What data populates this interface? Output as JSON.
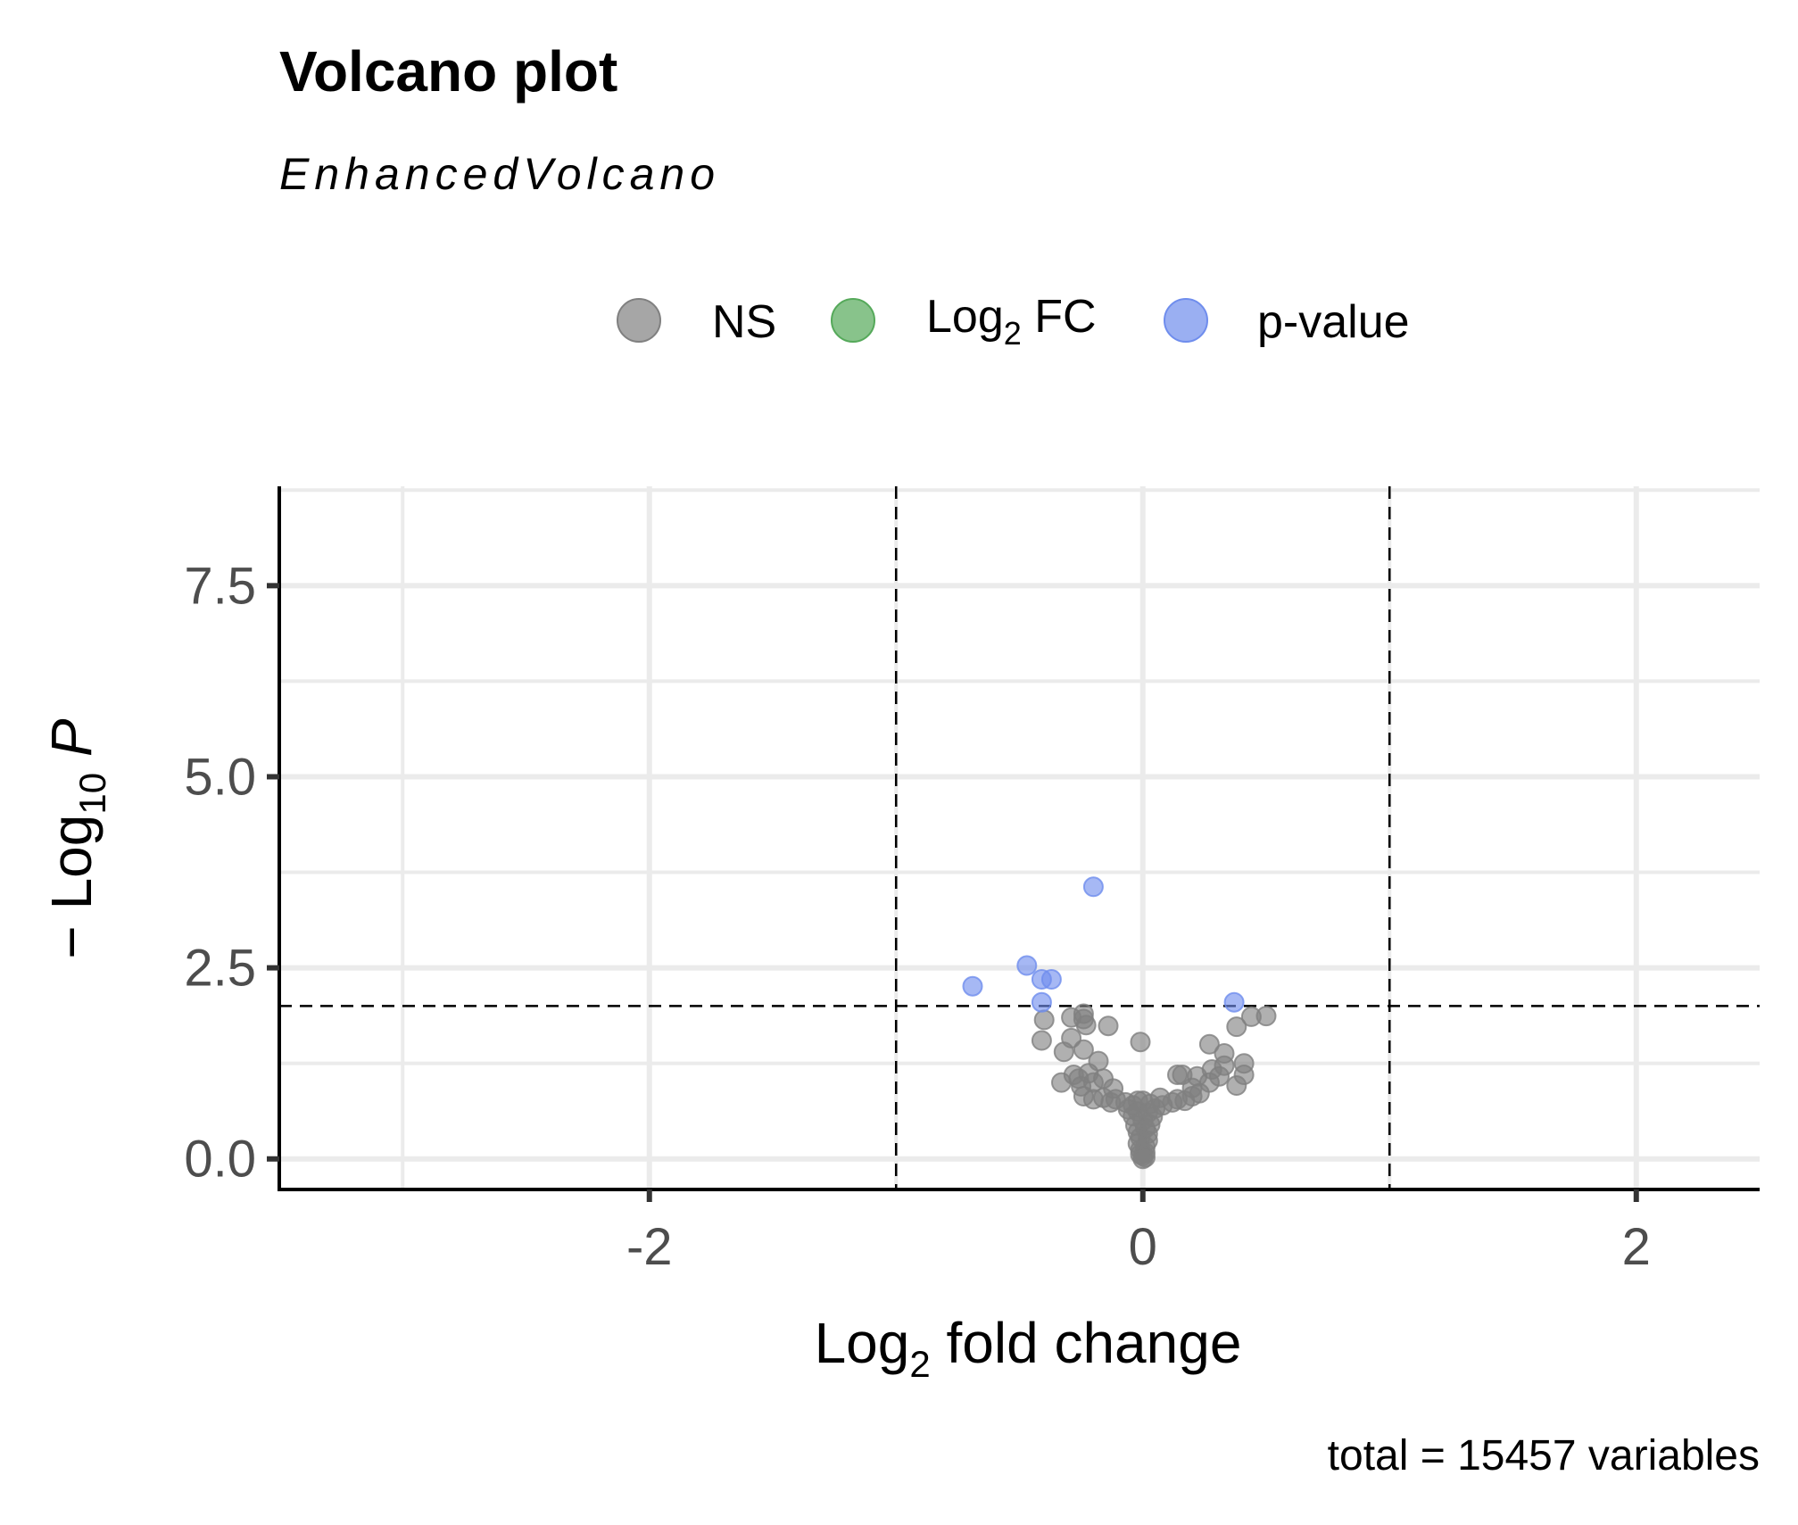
{
  "chart_data": {
    "type": "scatter",
    "title": "Volcano plot",
    "subtitle": "EnhancedVolcano",
    "xlabel": {
      "prefix": "Log",
      "sub": "2",
      "suffix": " fold change"
    },
    "ylabel": {
      "prefix": "− Log",
      "sub": "10",
      "suffix": " P"
    },
    "caption": "total = 15457 variables",
    "xlim": [
      -3.5,
      2.5
    ],
    "ylim": [
      -0.4,
      8.8
    ],
    "x_major_ticks": [
      -2,
      0,
      2
    ],
    "x_tick_labels": [
      "-2",
      "0",
      "2"
    ],
    "x_minor_ticks": [
      -3,
      -1,
      1
    ],
    "y_major_ticks": [
      0,
      2.5,
      5,
      7.5
    ],
    "y_tick_labels": [
      "0.0",
      "2.5",
      "5.0",
      "7.5"
    ],
    "y_minor_ticks": [
      1.25,
      3.75,
      6.25,
      8.75
    ],
    "grid": true,
    "legend_position": "top",
    "cutoffs": {
      "fc_x": [
        -1,
        1
      ],
      "p_y": 2
    },
    "legend": [
      {
        "name": "NS",
        "color": "#808080"
      },
      {
        "name": {
          "prefix": "Log",
          "sub": "2",
          "suffix": " FC"
        },
        "color": "#55a95a"
      },
      {
        "name": "p-value",
        "color": "#6f8ded"
      }
    ],
    "series": [
      {
        "name": "NS",
        "color": "#808080",
        "points": [
          [
            -0.4,
            1.82
          ],
          [
            -0.29,
            1.85
          ],
          [
            -0.24,
            1.83
          ],
          [
            -0.24,
            1.9
          ],
          [
            -0.23,
            1.75
          ],
          [
            -0.14,
            1.74
          ],
          [
            -0.41,
            1.55
          ],
          [
            -0.29,
            1.58
          ],
          [
            -0.24,
            1.43
          ],
          [
            -0.32,
            1.4
          ],
          [
            -0.18,
            1.28
          ],
          [
            -0.33,
            1.0
          ],
          [
            -0.26,
            1.05
          ],
          [
            -0.28,
            1.1
          ],
          [
            -0.22,
            1.12
          ],
          [
            -0.25,
            0.95
          ],
          [
            -0.2,
            1.0
          ],
          [
            -0.16,
            1.05
          ],
          [
            -0.12,
            0.92
          ],
          [
            -0.24,
            0.82
          ],
          [
            -0.2,
            0.78
          ],
          [
            -0.16,
            0.8
          ],
          [
            -0.11,
            0.78
          ],
          [
            -0.07,
            0.74
          ],
          [
            -0.13,
            0.74
          ],
          [
            -0.01,
            1.53
          ],
          [
            0.27,
            1.5
          ],
          [
            0.33,
            1.38
          ],
          [
            0.38,
            1.73
          ],
          [
            0.44,
            1.86
          ],
          [
            0.5,
            1.87
          ],
          [
            0.33,
            1.22
          ],
          [
            0.28,
            1.17
          ],
          [
            0.41,
            1.25
          ],
          [
            0.41,
            1.1
          ],
          [
            0.38,
            0.96
          ],
          [
            0.31,
            1.08
          ],
          [
            0.27,
            1.0
          ],
          [
            0.22,
            1.08
          ],
          [
            0.16,
            1.1
          ],
          [
            0.14,
            1.1
          ],
          [
            0.2,
            0.93
          ],
          [
            0.23,
            0.86
          ],
          [
            0.2,
            0.82
          ],
          [
            0.17,
            0.76
          ],
          [
            0.14,
            0.78
          ],
          [
            0.07,
            0.8
          ],
          [
            0.12,
            0.74
          ],
          [
            0.08,
            0.7
          ],
          [
            -0.02,
            0.76
          ],
          [
            0.0,
            0.76
          ],
          [
            0.03,
            0.72
          ],
          [
            -0.04,
            0.7
          ],
          [
            -0.06,
            0.65
          ],
          [
            0.05,
            0.66
          ],
          [
            -0.02,
            0.62
          ],
          [
            0.02,
            0.6
          ],
          [
            0.04,
            0.55
          ],
          [
            -0.04,
            0.56
          ],
          [
            0.0,
            0.5
          ],
          [
            0.03,
            0.45
          ],
          [
            -0.03,
            0.44
          ],
          [
            0.01,
            0.4
          ],
          [
            -0.02,
            0.35
          ],
          [
            0.02,
            0.33
          ],
          [
            -0.01,
            0.28
          ],
          [
            0.02,
            0.24
          ],
          [
            -0.02,
            0.2
          ],
          [
            0.01,
            0.16
          ],
          [
            -0.01,
            0.12
          ],
          [
            0.01,
            0.08
          ],
          [
            0.0,
            0.04
          ],
          [
            0.0,
            0.0
          ],
          [
            -0.01,
            0.06
          ],
          [
            0.01,
            0.02
          ]
        ]
      },
      {
        "name": "p-value",
        "color": "#6f8ded",
        "points": [
          [
            -0.2,
            3.56
          ],
          [
            -0.47,
            2.53
          ],
          [
            -0.41,
            2.35
          ],
          [
            -0.37,
            2.35
          ],
          [
            -0.69,
            2.26
          ],
          [
            -0.41,
            2.05
          ],
          [
            0.37,
            2.05
          ]
        ]
      }
    ]
  }
}
